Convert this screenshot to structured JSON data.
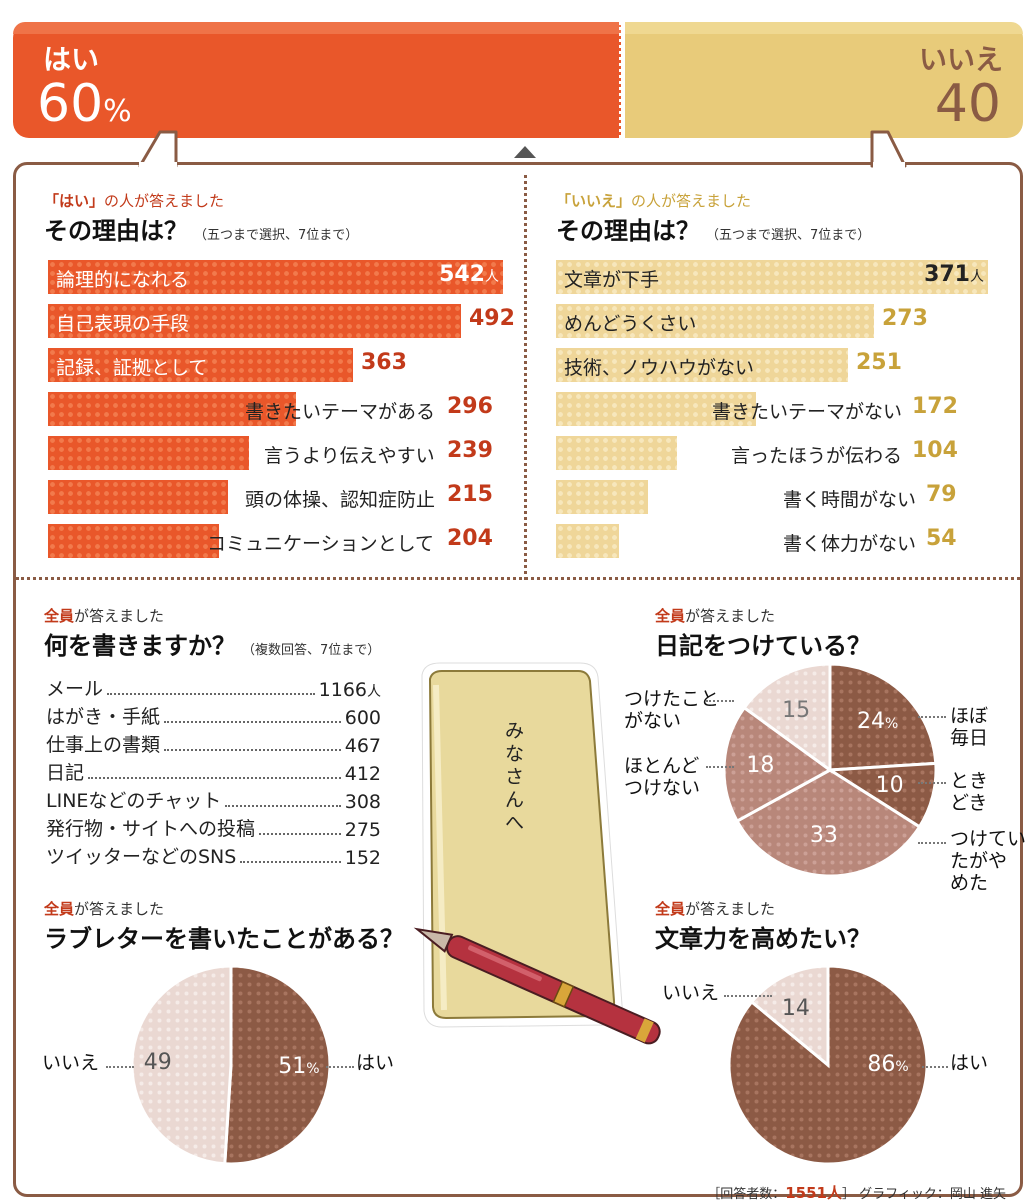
{
  "top": {
    "yes_label": "はい",
    "yes_value": "60",
    "yes_unit": "%",
    "no_label": "いいえ",
    "no_value": "40"
  },
  "yes_reasons": {
    "pre_highlight": "「はい」",
    "pre_rest": "の人が答えました",
    "title": "その理由は？",
    "note": "（五つまで選択、7位まで）",
    "unit": "人"
  },
  "no_reasons": {
    "pre_highlight": "「いいえ」",
    "pre_rest": "の人が答えました",
    "title": "その理由は？",
    "note": "（五つまで選択、7位まで）",
    "unit": "人"
  },
  "writes": {
    "pre_highlight": "全員",
    "pre_rest": "が答えました",
    "title": "何を書きますか？",
    "note": "（複数回答、7位まで）",
    "unit": "人"
  },
  "diary": {
    "pre_highlight": "全員",
    "pre_rest": "が答えました",
    "title": "日記をつけている？"
  },
  "loveletter": {
    "pre_highlight": "全員",
    "pre_rest": "が答えました",
    "title": "ラブレターを書いたことがある？"
  },
  "improve": {
    "pre_highlight": "全員",
    "pre_rest": "が答えました",
    "title": "文章力を高めたい？"
  },
  "envelope_text": "みなさんへ",
  "footer": {
    "prefix": "［回答者数：",
    "count": "1551人",
    "suffix": "］ グラフィック：岡山 進矢"
  },
  "colors": {
    "orange": "#e9572a",
    "tan": "#e8cb7a",
    "brown": "#8c5a45",
    "rose": "#c9988a",
    "pale": "#ead8d2"
  },
  "chart_data": [
    {
      "type": "bar",
      "categories": [
        "はい",
        "いいえ"
      ],
      "values": [
        60,
        40
      ],
      "ylabel": "%"
    },
    {
      "type": "bar",
      "orientation": "horizontal",
      "categories": [
        "論理的になれる",
        "自己表現の手段",
        "記録、証拠として",
        "書きたいテーマがある",
        "言うより伝えやすい",
        "頭の体操、認知症防止",
        "コミュニケーションとして"
      ],
      "values": [
        542,
        492,
        363,
        296,
        239,
        215,
        204
      ],
      "title": "その理由は？"
    },
    {
      "type": "bar",
      "orientation": "horizontal",
      "categories": [
        "文章が下手",
        "めんどうくさい",
        "技術、ノウハウがない",
        "書きたいテーマがない",
        "言ったほうが伝わる",
        "書く時間がない",
        "書く体力がない"
      ],
      "values": [
        371,
        273,
        251,
        172,
        104,
        79,
        54
      ],
      "title": "その理由は？"
    },
    {
      "type": "table",
      "categories": [
        "メール",
        "はがき・手紙",
        "仕事上の書類",
        "日記",
        "LINEなどのチャット",
        "発行物・サイトへの投稿",
        "ツイッターなどのSNS"
      ],
      "values": [
        1166,
        600,
        467,
        412,
        308,
        275,
        152
      ],
      "title": "何を書きますか？"
    },
    {
      "type": "pie",
      "title": "日記をつけている？",
      "categories": [
        "ほぼ毎日",
        "ときどき",
        "つけていたがやめた",
        "ほとんどつけない",
        "つけたことがない"
      ],
      "values": [
        24,
        10,
        33,
        18,
        15
      ]
    },
    {
      "type": "pie",
      "title": "ラブレターを書いたことがある？",
      "categories": [
        "はい",
        "いいえ"
      ],
      "values": [
        51,
        49
      ]
    },
    {
      "type": "pie",
      "title": "文章力を高めたい？",
      "categories": [
        "はい",
        "いいえ"
      ],
      "values": [
        86,
        14
      ]
    }
  ]
}
